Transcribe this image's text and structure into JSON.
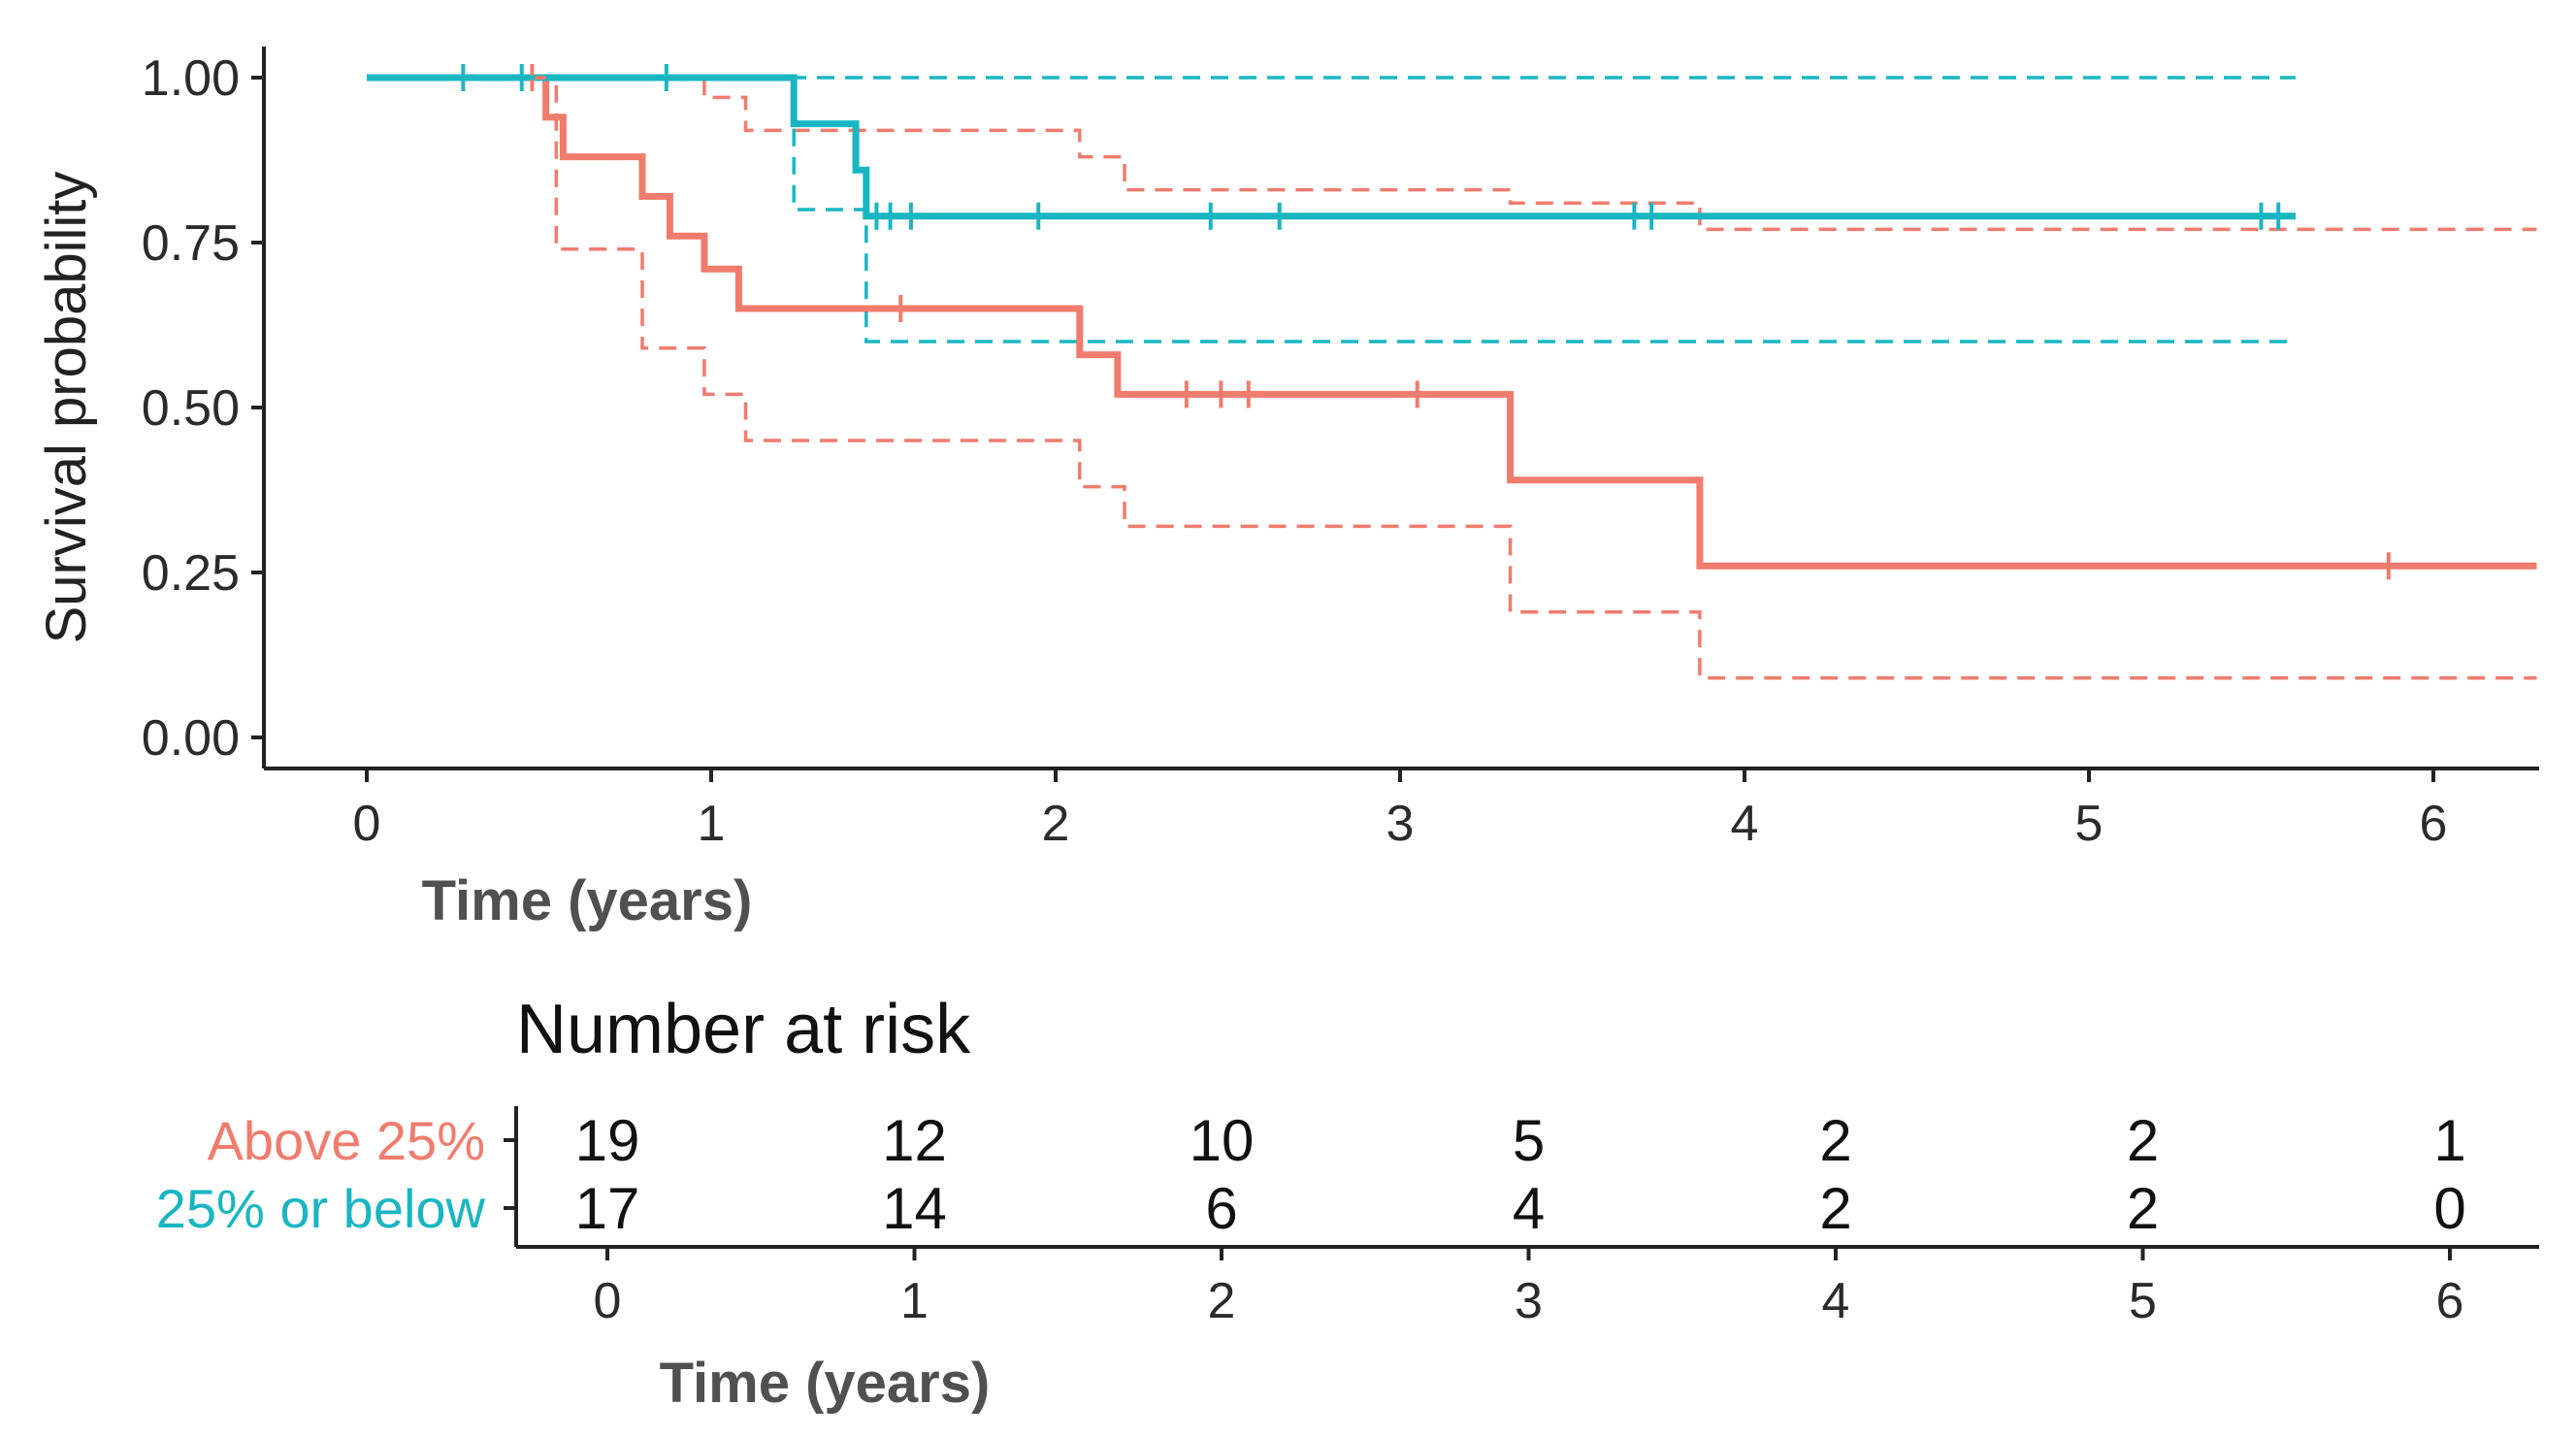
{
  "chart_data": {
    "type": "line",
    "subtype": "kaplan-meier",
    "title": "",
    "xlabel": "Time (years)",
    "ylabel": "Survival probability",
    "xlim": [
      0,
      6.3
    ],
    "ylim": [
      0,
      1
    ],
    "x_ticks": [
      0,
      1,
      2,
      3,
      4,
      5,
      6
    ],
    "y_ticks": [
      "0.00",
      "0.25",
      "0.50",
      "0.75",
      "1.00"
    ],
    "y_tick_values": [
      0,
      0.25,
      0.5,
      0.75,
      1
    ],
    "grid": false,
    "legend": "none",
    "confidence_intervals": true,
    "series": [
      {
        "name": "Above 25%",
        "color": "#F07C6E",
        "steps": [
          [
            0,
            1.0
          ],
          [
            0.52,
            0.94
          ],
          [
            0.57,
            0.88
          ],
          [
            0.8,
            0.82
          ],
          [
            0.88,
            0.76
          ],
          [
            0.98,
            0.71
          ],
          [
            1.08,
            0.65
          ],
          [
            2.07,
            0.58
          ],
          [
            2.18,
            0.52
          ],
          [
            3.32,
            0.39
          ],
          [
            3.87,
            0.26
          ],
          [
            6.3,
            0.26
          ]
        ],
        "ci_upper": [
          [
            0,
            1.0
          ],
          [
            0.98,
            0.97
          ],
          [
            1.1,
            0.92
          ],
          [
            2.07,
            0.88
          ],
          [
            2.2,
            0.83
          ],
          [
            3.32,
            0.81
          ],
          [
            3.87,
            0.77
          ],
          [
            6.3,
            0.77
          ]
        ],
        "ci_lower": [
          [
            0,
            1.0
          ],
          [
            0.55,
            0.74
          ],
          [
            0.8,
            0.59
          ],
          [
            0.98,
            0.52
          ],
          [
            1.1,
            0.45
          ],
          [
            2.07,
            0.38
          ],
          [
            2.2,
            0.32
          ],
          [
            3.32,
            0.19
          ],
          [
            3.87,
            0.09
          ],
          [
            6.3,
            0.09
          ]
        ],
        "censored": [
          0.48,
          1.55,
          2.38,
          2.48,
          2.56,
          3.05,
          5.87
        ]
      },
      {
        "name": "25% or below",
        "color": "#19B6C2",
        "steps": [
          [
            0,
            1.0
          ],
          [
            1.24,
            0.93
          ],
          [
            1.42,
            0.86
          ],
          [
            1.45,
            0.79
          ],
          [
            5.6,
            0.79
          ]
        ],
        "ci_upper": [
          [
            0,
            1.0
          ],
          [
            5.6,
            1.0
          ]
        ],
        "ci_lower": [
          [
            0,
            1.0
          ],
          [
            1.24,
            0.8
          ],
          [
            1.45,
            0.6
          ],
          [
            5.6,
            0.6
          ]
        ],
        "censored": [
          0.28,
          0.45,
          0.87,
          1.48,
          1.52,
          1.58,
          1.95,
          2.45,
          2.65,
          3.68,
          3.73,
          5.5,
          5.55
        ]
      }
    ],
    "risk_table": {
      "title": "Number at risk",
      "xlabel": "Time (years)",
      "times": [
        0,
        1,
        2,
        3,
        4,
        5,
        6
      ],
      "rows": [
        {
          "group": "Above 25%",
          "color": "#F07C6E",
          "counts": [
            19,
            12,
            10,
            5,
            2,
            2,
            1
          ]
        },
        {
          "group": "25% or below",
          "color": "#19B6C2",
          "counts": [
            17,
            14,
            6,
            4,
            2,
            2,
            0
          ]
        }
      ]
    }
  }
}
